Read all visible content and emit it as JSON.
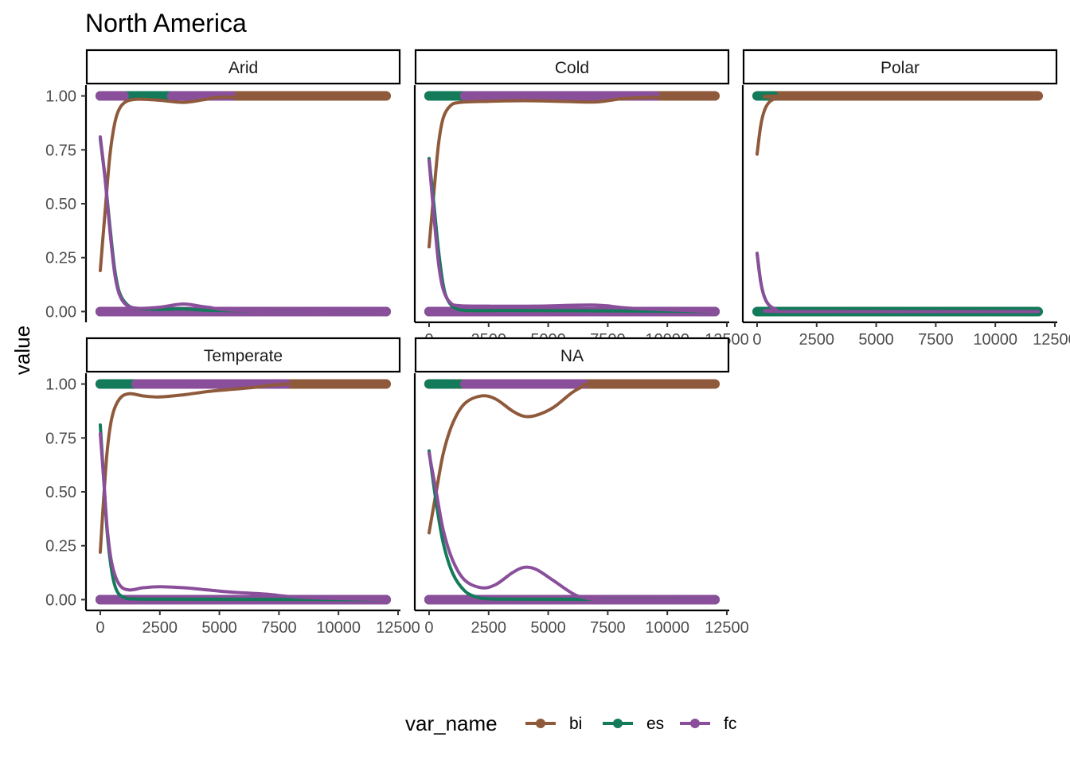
{
  "chart_data": {
    "type": "scatter",
    "title": "North America",
    "xlabel": "",
    "ylabel": "value",
    "xlim": [
      -600,
      12600
    ],
    "ylim": [
      -0.05,
      1.05
    ],
    "x_ticks": [
      0,
      2500,
      5000,
      7500,
      10000,
      12500
    ],
    "x_tick_labels": [
      "0",
      "2500",
      "5000",
      "7500",
      "10000",
      "12500"
    ],
    "y_ticks": [
      0,
      0.25,
      0.5,
      0.75,
      1.0
    ],
    "y_tick_labels": [
      "0.00",
      "0.25",
      "0.50",
      "0.75",
      "1.00"
    ],
    "grid": false,
    "legend": {
      "title": "var_name",
      "position": "bottom",
      "entries": [
        {
          "key": "bi",
          "label": "bi",
          "color": "#8f5a3c"
        },
        {
          "key": "es",
          "label": "es",
          "color": "#137a5a"
        },
        {
          "key": "fc",
          "label": "fc",
          "color": "#8a4f9a"
        }
      ]
    },
    "panels": [
      {
        "name": "Arid",
        "points": {
          "bi": {
            "zero": [
              [
                0,
                0
              ]
            ],
            "one": [
              [
                0,
                12000
              ]
            ]
          },
          "es": {
            "zero": [
              [
                0,
                12000
              ]
            ],
            "one": [
              [
                0,
                1400
              ],
              [
                1600,
                5000
              ]
            ],
            "one_dots": [
              1200,
              1550,
              1900,
              2250,
              2600,
              2950,
              3300,
              3650,
              4000,
              4350,
              4800
            ],
            "zero_dots": [
              11000,
              11300,
              11600,
              11900
            ]
          },
          "fc": {
            "zero": [
              [
                0,
                12000
              ]
            ],
            "one": [
              [
                0,
                1000
              ],
              [
                3000,
                5500
              ]
            ]
          }
        },
        "lines": {
          "bi": [
            [
              0,
              0.19
            ],
            [
              200,
              0.46
            ],
            [
              400,
              0.72
            ],
            [
              600,
              0.87
            ],
            [
              800,
              0.94
            ],
            [
              1100,
              0.975
            ],
            [
              1600,
              0.985
            ],
            [
              2500,
              0.98
            ],
            [
              3500,
              0.97
            ],
            [
              4500,
              0.985
            ],
            [
              5500,
              0.995
            ],
            [
              12000,
              1.0
            ]
          ],
          "es": [
            [
              0,
              0.8
            ],
            [
              200,
              0.62
            ],
            [
              400,
              0.4
            ],
            [
              600,
              0.2
            ],
            [
              800,
              0.09
            ],
            [
              1100,
              0.035
            ],
            [
              1500,
              0.015
            ],
            [
              2500,
              0.01
            ],
            [
              3500,
              0.012
            ],
            [
              5000,
              0.005
            ],
            [
              12000,
              0.0
            ]
          ],
          "fc": [
            [
              0,
              0.81
            ],
            [
              200,
              0.62
            ],
            [
              400,
              0.38
            ],
            [
              600,
              0.18
            ],
            [
              800,
              0.08
            ],
            [
              1100,
              0.03
            ],
            [
              1600,
              0.015
            ],
            [
              2500,
              0.02
            ],
            [
              3500,
              0.035
            ],
            [
              4500,
              0.02
            ],
            [
              6000,
              0.005
            ],
            [
              12000,
              0.0
            ]
          ]
        }
      },
      {
        "name": "Cold",
        "points": {
          "bi": {
            "zero": [
              [
                0,
                0
              ]
            ],
            "one": [
              [
                0,
                12000
              ]
            ]
          },
          "es": {
            "zero": [
              [
                0,
                12000
              ]
            ],
            "one": [
              [
                0,
                1800
              ]
            ],
            "one_dots": [],
            "zero_dots": [
              10800,
              11200,
              11600,
              11900
            ]
          },
          "fc": {
            "zero": [
              [
                0,
                12000
              ]
            ],
            "one": [
              [
                1500,
                9500
              ]
            ]
          }
        },
        "lines": {
          "bi": [
            [
              0,
              0.3
            ],
            [
              200,
              0.55
            ],
            [
              400,
              0.78
            ],
            [
              600,
              0.9
            ],
            [
              900,
              0.955
            ],
            [
              1300,
              0.97
            ],
            [
              2500,
              0.975
            ],
            [
              4000,
              0.978
            ],
            [
              5500,
              0.975
            ],
            [
              7000,
              0.972
            ],
            [
              8500,
              0.99
            ],
            [
              12000,
              1.0
            ]
          ],
          "es": [
            [
              0,
              0.71
            ],
            [
              200,
              0.5
            ],
            [
              400,
              0.28
            ],
            [
              600,
              0.12
            ],
            [
              800,
              0.05
            ],
            [
              1100,
              0.015
            ],
            [
              1600,
              0.005
            ],
            [
              3000,
              0.005
            ],
            [
              6000,
              0.004
            ],
            [
              12000,
              0.0
            ]
          ],
          "fc": [
            [
              0,
              0.7
            ],
            [
              200,
              0.45
            ],
            [
              400,
              0.22
            ],
            [
              600,
              0.1
            ],
            [
              900,
              0.04
            ],
            [
              1300,
              0.027
            ],
            [
              2500,
              0.025
            ],
            [
              4500,
              0.025
            ],
            [
              7000,
              0.03
            ],
            [
              8500,
              0.015
            ],
            [
              12000,
              0.0
            ]
          ]
        }
      },
      {
        "name": "Polar",
        "points": {
          "bi": {
            "zero": [],
            "one": [
              [
                700,
                11800
              ]
            ]
          },
          "es": {
            "zero": [
              [
                0,
                11800
              ]
            ],
            "one": [
              [
                0,
                700
              ]
            ],
            "one_dots": [],
            "zero_dots": []
          },
          "fc": {
            "zero": [],
            "one": []
          }
        },
        "lines": {
          "bi": [
            [
              0,
              0.73
            ],
            [
              150,
              0.86
            ],
            [
              300,
              0.93
            ],
            [
              500,
              0.97
            ],
            [
              800,
              0.99
            ],
            [
              1200,
              1.0
            ],
            [
              11800,
              1.0
            ]
          ],
          "es": [
            [
              0,
              0.27
            ],
            [
              150,
              0.14
            ],
            [
              300,
              0.07
            ],
            [
              500,
              0.03
            ],
            [
              800,
              0.01
            ],
            [
              1200,
              0.0
            ],
            [
              11800,
              0.0
            ]
          ],
          "fc": [
            [
              0,
              0.27
            ],
            [
              150,
              0.14
            ],
            [
              300,
              0.07
            ],
            [
              500,
              0.03
            ],
            [
              800,
              0.01
            ],
            [
              1200,
              0.0
            ],
            [
              11800,
              0.0
            ]
          ]
        }
      },
      {
        "name": "Temperate",
        "points": {
          "bi": {
            "zero": [
              [
                0,
                0
              ]
            ],
            "one": [
              [
                0,
                12000
              ]
            ]
          },
          "es": {
            "zero": [
              [
                0,
                12000
              ]
            ],
            "one": [
              [
                0,
                1400
              ],
              [
                1600,
                2700
              ]
            ],
            "one_dots": [
              3550
            ],
            "zero_dots": [
              10800,
              11200,
              11600,
              11900
            ]
          },
          "fc": {
            "zero": [
              [
                0,
                12000
              ]
            ],
            "one": [
              [
                1500,
                7800
              ]
            ]
          }
        },
        "lines": {
          "bi": [
            [
              0,
              0.22
            ],
            [
              150,
              0.48
            ],
            [
              300,
              0.7
            ],
            [
              500,
              0.85
            ],
            [
              800,
              0.93
            ],
            [
              1200,
              0.955
            ],
            [
              1800,
              0.945
            ],
            [
              2500,
              0.94
            ],
            [
              3500,
              0.95
            ],
            [
              4500,
              0.965
            ],
            [
              5500,
              0.975
            ],
            [
              6500,
              0.985
            ],
            [
              8000,
              1.0
            ],
            [
              12000,
              1.0
            ]
          ],
          "es": [
            [
              0,
              0.81
            ],
            [
              150,
              0.55
            ],
            [
              300,
              0.3
            ],
            [
              500,
              0.12
            ],
            [
              700,
              0.04
            ],
            [
              1000,
              0.01
            ],
            [
              1500,
              0.003
            ],
            [
              3000,
              0.002
            ],
            [
              12000,
              0.0
            ]
          ],
          "fc": [
            [
              0,
              0.77
            ],
            [
              150,
              0.55
            ],
            [
              300,
              0.32
            ],
            [
              500,
              0.16
            ],
            [
              800,
              0.07
            ],
            [
              1200,
              0.045
            ],
            [
              1800,
              0.055
            ],
            [
              2500,
              0.06
            ],
            [
              3500,
              0.055
            ],
            [
              4500,
              0.045
            ],
            [
              5500,
              0.035
            ],
            [
              7000,
              0.025
            ],
            [
              8500,
              0.01
            ],
            [
              12000,
              0.0
            ]
          ]
        }
      },
      {
        "name": "NA",
        "points": {
          "bi": {
            "zero": [
              [
                0,
                0
              ]
            ],
            "one": [
              [
                0,
                12000
              ]
            ]
          },
          "es": {
            "zero": [
              [
                0,
                12000
              ]
            ],
            "one": [
              [
                0,
                1000
              ]
            ],
            "one_dots": [
              1050,
              1300
            ],
            "zero_dots": [
              10500,
              10800,
              11100,
              11400,
              11700,
              11950
            ]
          },
          "fc": {
            "zero": [
              [
                0,
                12000
              ]
            ],
            "one": [
              [
                1500,
                6500
              ]
            ]
          }
        },
        "lines": {
          "bi": [
            [
              0,
              0.31
            ],
            [
              300,
              0.5
            ],
            [
              600,
              0.68
            ],
            [
              1000,
              0.82
            ],
            [
              1500,
              0.91
            ],
            [
              2200,
              0.945
            ],
            [
              2800,
              0.93
            ],
            [
              3500,
              0.875
            ],
            [
              4000,
              0.85
            ],
            [
              4500,
              0.855
            ],
            [
              5200,
              0.89
            ],
            [
              6000,
              0.96
            ],
            [
              6500,
              0.99
            ],
            [
              7000,
              1.0
            ],
            [
              12000,
              1.0
            ]
          ],
          "es": [
            [
              0,
              0.69
            ],
            [
              300,
              0.45
            ],
            [
              600,
              0.26
            ],
            [
              1000,
              0.12
            ],
            [
              1500,
              0.04
            ],
            [
              2000,
              0.012
            ],
            [
              2500,
              0.004
            ],
            [
              4000,
              0.002
            ],
            [
              12000,
              0.0
            ]
          ],
          "fc": [
            [
              0,
              0.68
            ],
            [
              300,
              0.5
            ],
            [
              600,
              0.32
            ],
            [
              1000,
              0.18
            ],
            [
              1500,
              0.09
            ],
            [
              2200,
              0.055
            ],
            [
              2800,
              0.07
            ],
            [
              3500,
              0.125
            ],
            [
              4000,
              0.15
            ],
            [
              4500,
              0.14
            ],
            [
              5200,
              0.09
            ],
            [
              6000,
              0.03
            ],
            [
              6500,
              0.01
            ],
            [
              7500,
              0.0
            ],
            [
              12000,
              0.0
            ]
          ]
        }
      }
    ]
  }
}
